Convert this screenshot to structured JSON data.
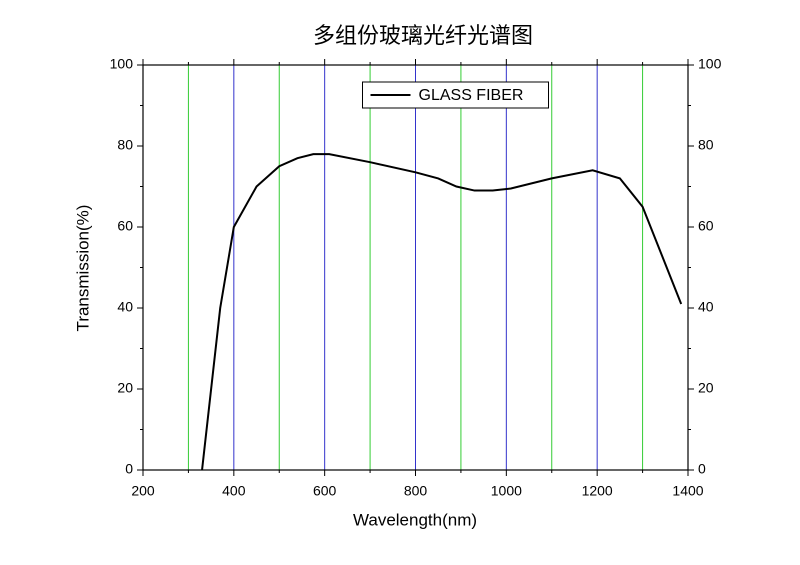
{
  "chart_data": {
    "type": "line",
    "title": "多组份玻璃光纤光谱图",
    "x_label": "Wavelength(nm)",
    "y_label": "Transmission(%)",
    "x": [
      330,
      370,
      400,
      450,
      500,
      540,
      575,
      610,
      700,
      800,
      850,
      890,
      930,
      970,
      1010,
      1100,
      1190,
      1250,
      1300,
      1385
    ],
    "series": [
      {
        "name": "GLASS FIBER",
        "color": "#000000",
        "values": [
          0,
          40,
          60,
          70,
          75,
          77,
          78,
          78,
          76,
          73.5,
          72,
          70,
          69,
          69,
          69.5,
          72,
          74,
          72,
          65,
          41
        ]
      }
    ],
    "xlim": [
      200,
      1400
    ],
    "xticks": [
      200,
      400,
      600,
      800,
      1000,
      1200,
      1400
    ],
    "xminorticks": [
      300,
      500,
      700,
      900,
      1100,
      1300
    ],
    "ylim": [
      0,
      100
    ],
    "yticks": [
      0,
      20,
      40,
      60,
      80,
      100
    ],
    "yminorticks": [
      10,
      30,
      50,
      70,
      90
    ],
    "grid": true,
    "grid_color": "#3333cc",
    "minor_grid_color": "#33cc33",
    "legend": "upper center"
  }
}
